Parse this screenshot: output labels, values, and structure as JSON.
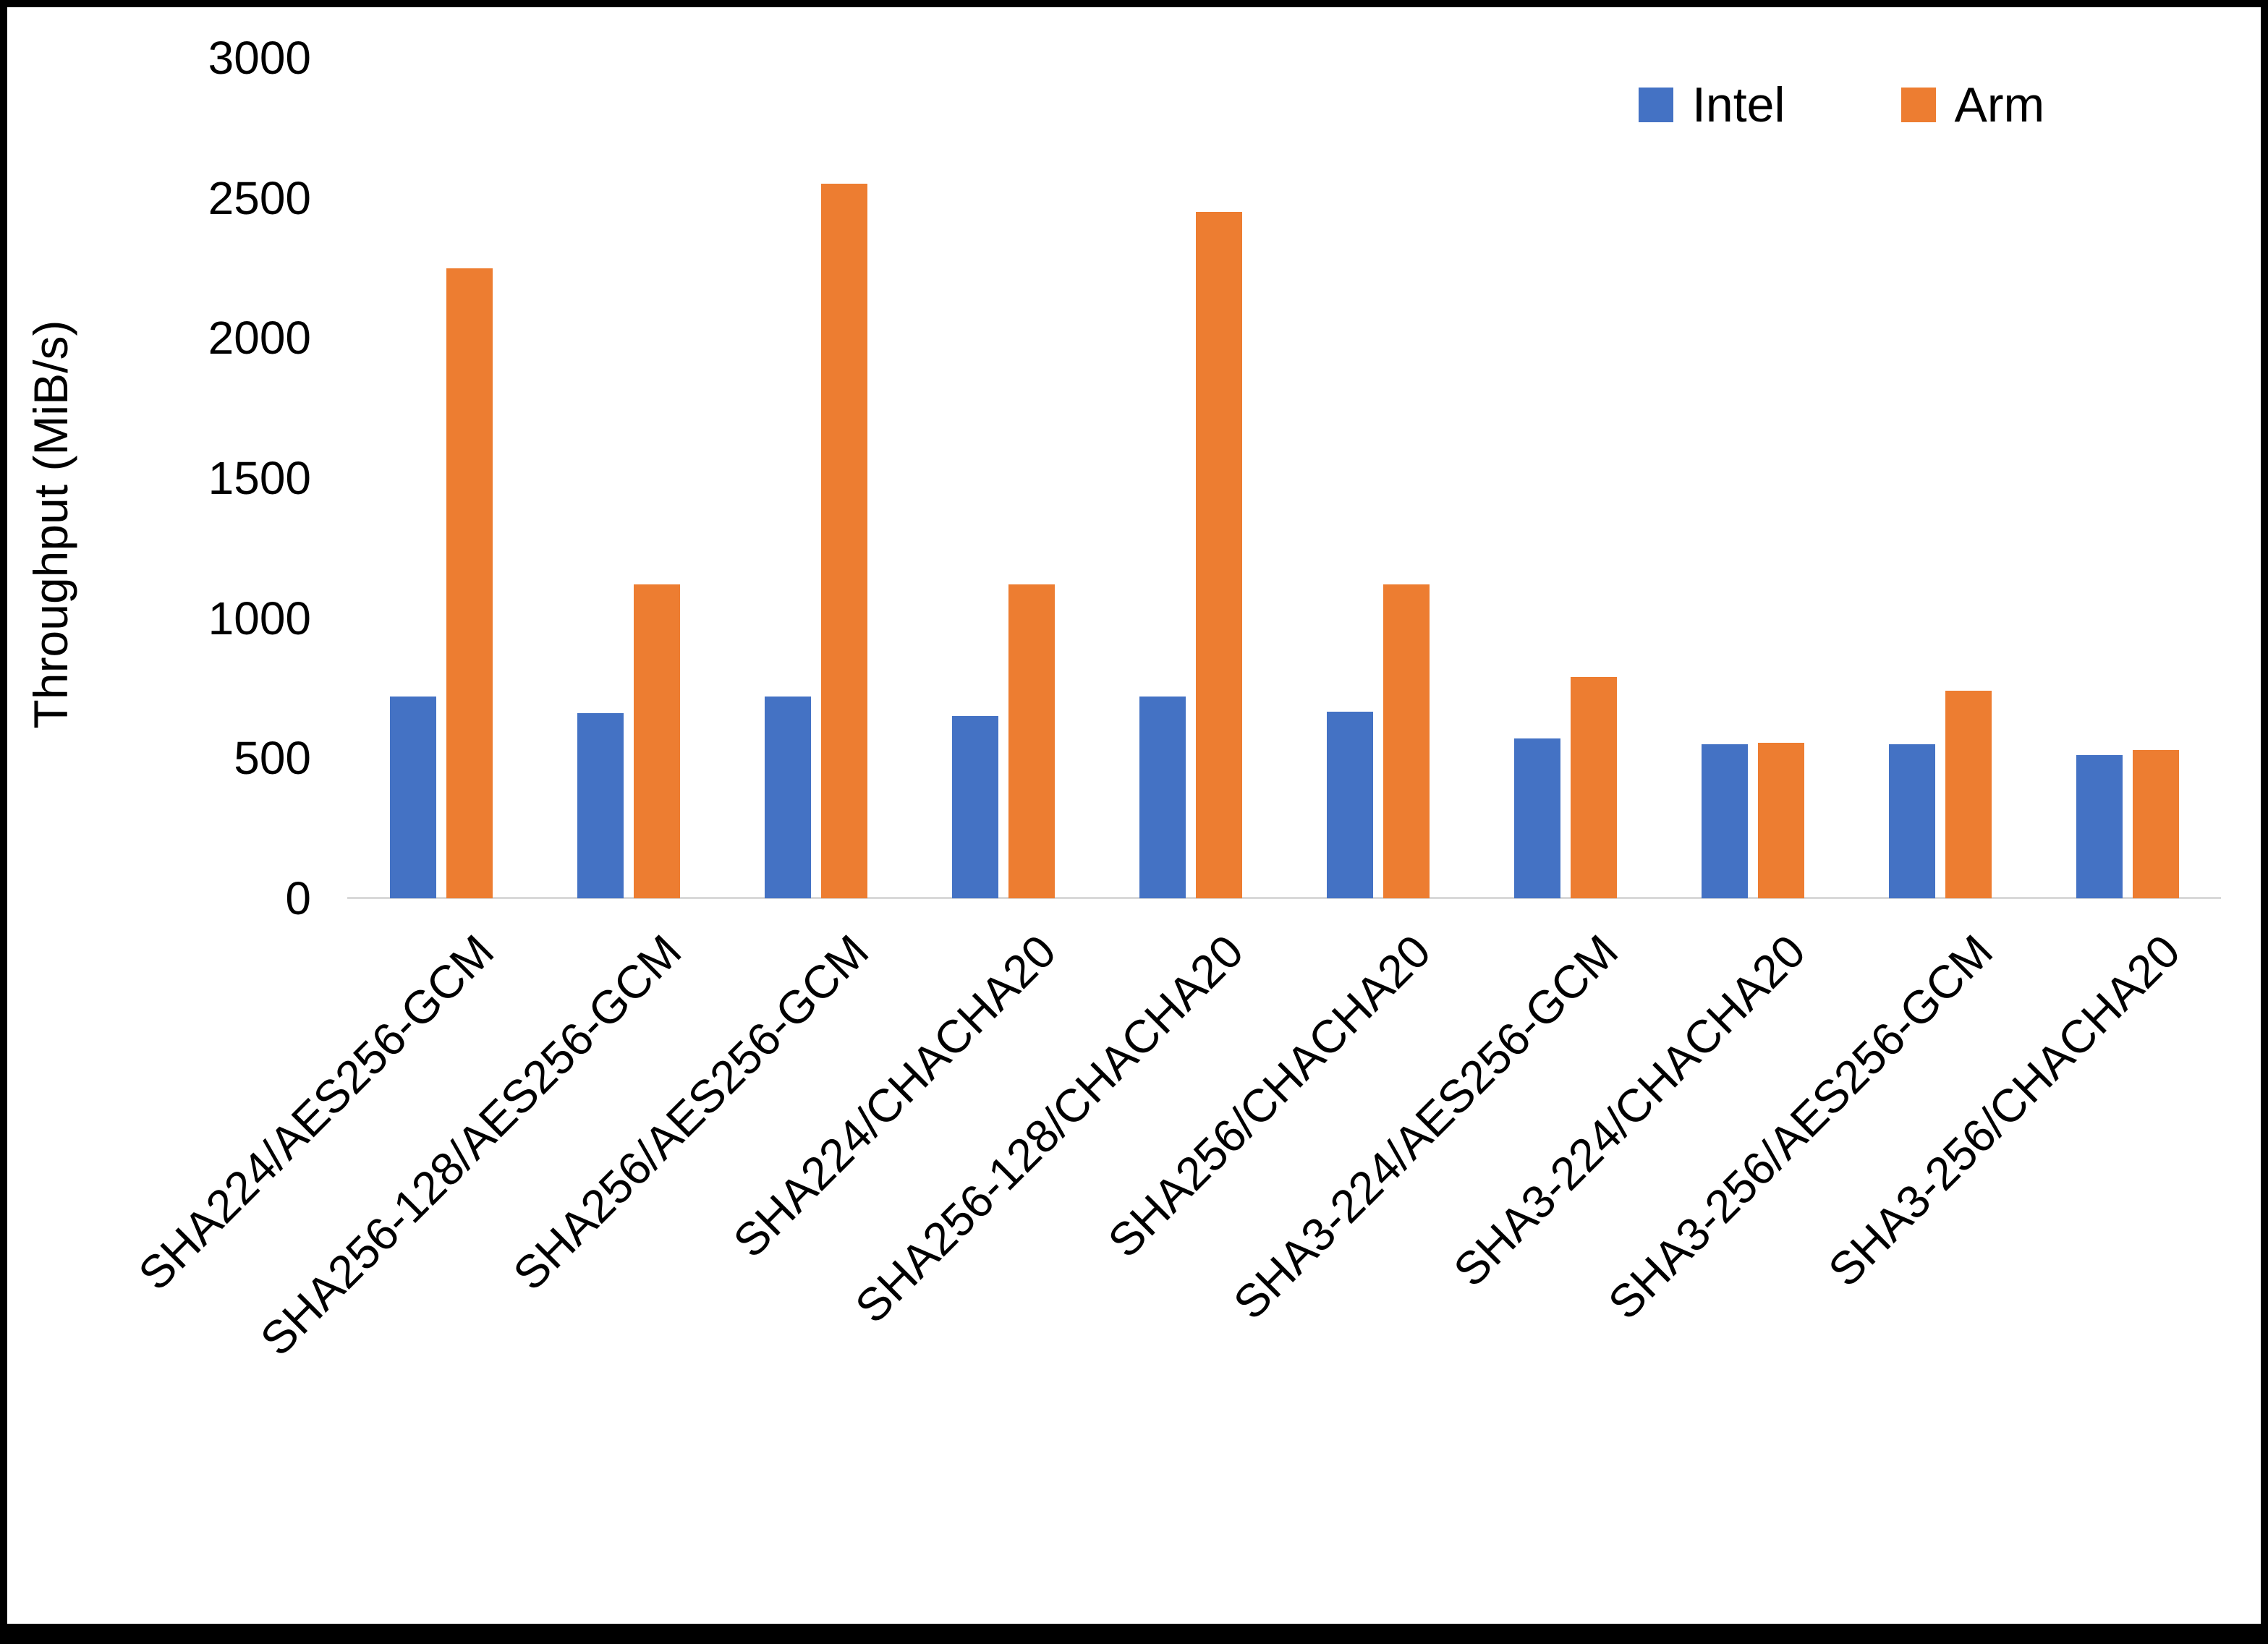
{
  "chart_data": {
    "type": "bar",
    "title": "",
    "xlabel": "",
    "ylabel": "Throughput (MiB/s)",
    "ylim": [
      0,
      3000
    ],
    "yticks": [
      0,
      500,
      1000,
      1500,
      2000,
      2500,
      3000
    ],
    "grid": false,
    "legend_position": "top-right",
    "categories": [
      "SHA224/AES256-GCM",
      "SHA256-128/AES256-GCM",
      "SHA256/AES256-GCM",
      "SHA224/CHACHA20",
      "SHA256-128/CHACHA20",
      "SHA256/CHACHA20",
      "SHA3-224/AES256-GCM",
      "SHA3-224/CHACHA20",
      "SHA3-256/AES256-GCM",
      "SHA3-256/CHACHA20"
    ],
    "series": [
      {
        "name": "Intel",
        "color": "#4472C4",
        "values": [
          720,
          660,
          720,
          650,
          720,
          665,
          570,
          550,
          550,
          510
        ]
      },
      {
        "name": "Arm",
        "color": "#ED7D31",
        "values": [
          2250,
          1120,
          2550,
          1120,
          2450,
          1120,
          790,
          555,
          740,
          530
        ]
      }
    ]
  },
  "colors": {
    "background": "#FFFFFF",
    "border": "#000000",
    "axis_line": "#D9D9D9",
    "text": "#000000"
  }
}
